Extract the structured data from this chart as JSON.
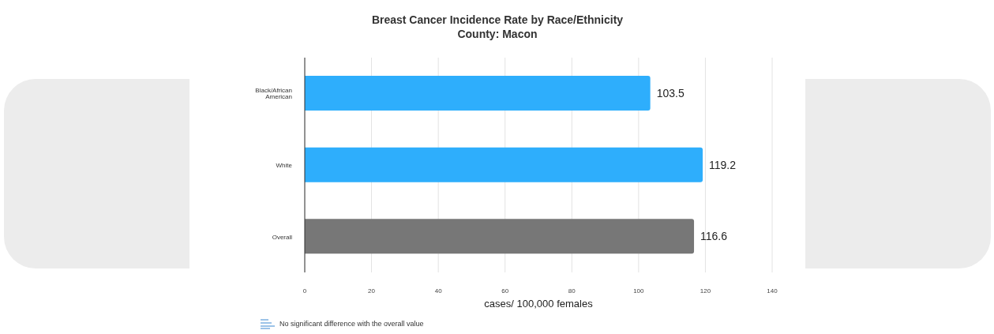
{
  "chart_data": {
    "type": "bar",
    "orientation": "horizontal",
    "title": "Breast Cancer Incidence Rate by Race/Ethnicity",
    "subtitle": "County: Macon",
    "xlabel": "cases/ 100,000 females",
    "categories": [
      "Black/African American",
      "White",
      "Overall"
    ],
    "values": [
      103.5,
      119.2,
      116.6
    ],
    "colors": [
      "#2eaefc",
      "#2eaefc",
      "#777777"
    ],
    "xlim": [
      0,
      140
    ],
    "xticks": [
      0,
      20,
      40,
      60,
      80,
      100,
      120,
      140
    ],
    "grid": "x",
    "data_labels": true,
    "annotations": [
      "No significant difference with the overall value"
    ]
  }
}
